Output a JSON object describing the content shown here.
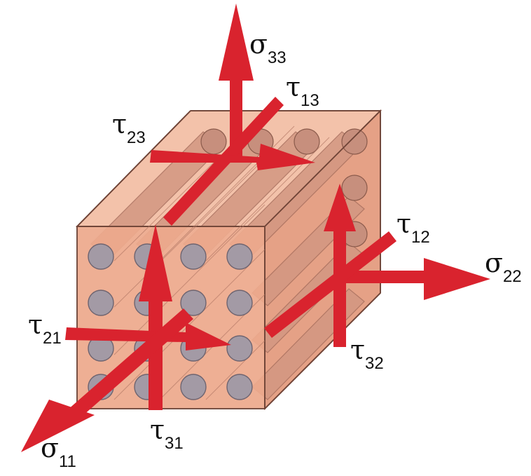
{
  "colors": {
    "block_face": "#eda98c",
    "block_edge": "#7b4a3c",
    "fiber_end": "#a39aa5",
    "fiber_body": "#c98e7a",
    "arrow": "#d9232e"
  },
  "labels": {
    "sigma33": {
      "symbol": "σ",
      "subscript": "33"
    },
    "tau13": {
      "symbol": "τ",
      "subscript": "13"
    },
    "tau23": {
      "symbol": "τ",
      "subscript": "23"
    },
    "tau12": {
      "symbol": "τ",
      "subscript": "12"
    },
    "sigma22": {
      "symbol": "σ",
      "subscript": "22"
    },
    "tau21": {
      "symbol": "τ",
      "subscript": "21"
    },
    "tau32": {
      "symbol": "τ",
      "subscript": "32"
    },
    "tau31": {
      "symbol": "τ",
      "subscript": "31"
    },
    "sigma11": {
      "symbol": "σ",
      "subscript": "11"
    }
  }
}
